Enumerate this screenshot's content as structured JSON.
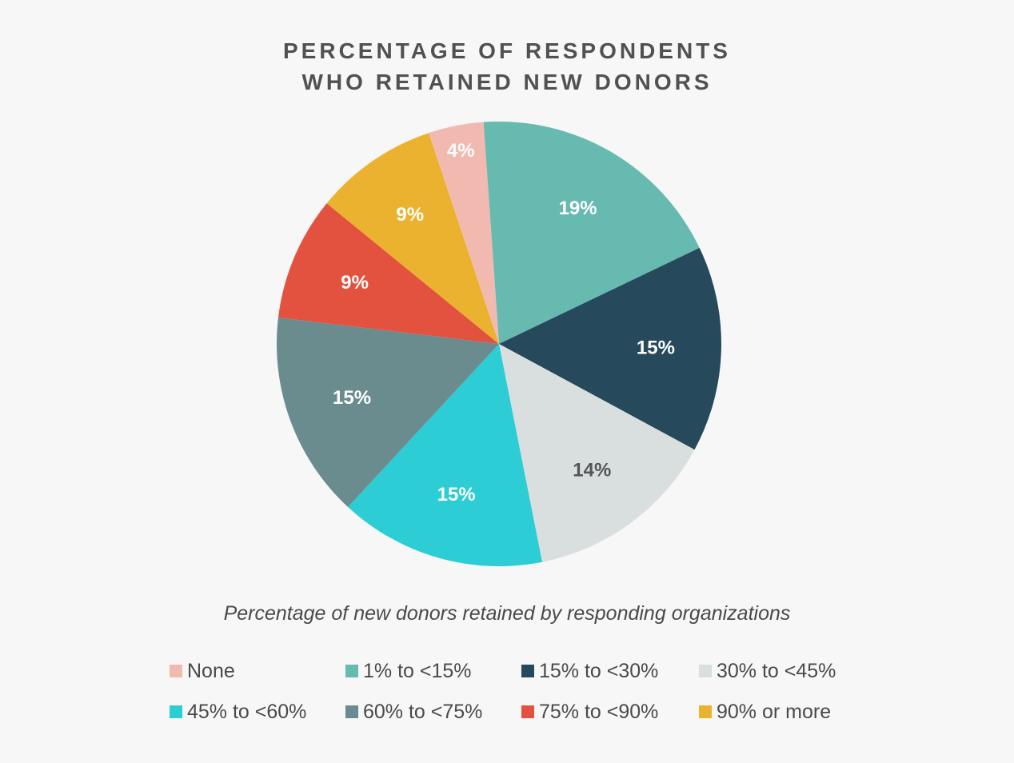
{
  "chart_data": {
    "type": "pie",
    "title_lines": [
      "PERCENTAGE OF RESPONDENTS",
      "WHO RETAINED NEW DONORS"
    ],
    "subtitle": "Percentage of new donors retained by responding organizations",
    "start_angle_deg": -4,
    "direction": "clockwise",
    "slices": [
      {
        "label": "1% to <15%",
        "value": 19,
        "display": "19%",
        "color": "#66bab0",
        "text_color": "#ffffff"
      },
      {
        "label": "15% to <30%",
        "value": 15,
        "display": "15%",
        "color": "#26495c",
        "text_color": "#ffffff"
      },
      {
        "label": "30% to <45%",
        "value": 14,
        "display": "14%",
        "color": "#d9dfdf",
        "text_color": "#555555"
      },
      {
        "label": "45% to <60%",
        "value": 15,
        "display": "15%",
        "color": "#2ccdd5",
        "text_color": "#ffffff"
      },
      {
        "label": "60% to <75%",
        "value": 15,
        "display": "15%",
        "color": "#6b8c8e",
        "text_color": "#ffffff"
      },
      {
        "label": "75% to <90%",
        "value": 9,
        "display": "9%",
        "color": "#e3523e",
        "text_color": "#ffffff"
      },
      {
        "label": "90% or more",
        "value": 9,
        "display": "9%",
        "color": "#ebb22f",
        "text_color": "#ffffff"
      },
      {
        "label": "None",
        "value": 4,
        "display": "4%",
        "color": "#f2b9b1",
        "text_color": "#ffffff"
      }
    ],
    "legend_placement": "bottom",
    "legend": [
      {
        "label": "None",
        "color": "#f2b9b1"
      },
      {
        "label": "1% to <15%",
        "color": "#66bab0"
      },
      {
        "label": "15% to <30%",
        "color": "#26495c"
      },
      {
        "label": "30% to <45%",
        "color": "#d9dfdf"
      },
      {
        "label": "45% to <60%",
        "color": "#2ccdd5"
      },
      {
        "label": "60% to <75%",
        "color": "#6b8c8e"
      },
      {
        "label": "75% to <90%",
        "color": "#e3523e"
      },
      {
        "label": "90% or more",
        "color": "#ebb22f"
      }
    ]
  }
}
